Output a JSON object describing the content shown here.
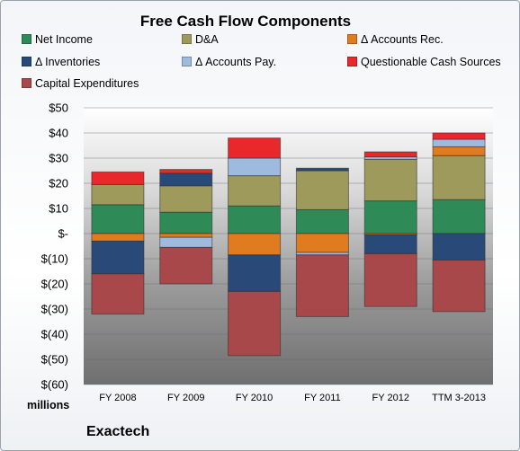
{
  "chart_data": {
    "type": "bar",
    "stacked": true,
    "title": "Free Cash Flow Components",
    "categories": [
      "FY 2008",
      "FY 2009",
      "FY 2010",
      "FY 2011",
      "FY 2012",
      "TTM 3-2013"
    ],
    "ylim": [
      -60,
      50
    ],
    "yticks": [
      50,
      40,
      30,
      20,
      10,
      0,
      -10,
      -20,
      -30,
      -40,
      -50,
      -60
    ],
    "ytick_labels": [
      "$50",
      "$40",
      "$30",
      "$20",
      "$10",
      "$-",
      "$(10)",
      "$(20)",
      "$(30)",
      "$(40)",
      "$(50)",
      "$(60)"
    ],
    "grid": true,
    "legend_position": "top",
    "series": [
      {
        "name": "Net Income",
        "color": "#2e8b57",
        "values": [
          11.5,
          8.5,
          11,
          9.5,
          13,
          13.5
        ]
      },
      {
        "name": "D&A",
        "color": "#9e9a5c",
        "values": [
          8,
          10.5,
          12,
          15.5,
          16.5,
          17.5
        ]
      },
      {
        "name": "Δ Accounts Rec.",
        "color": "#e07b1f",
        "values": [
          -3,
          -1.5,
          -8.5,
          -7.5,
          -0.5,
          3.5
        ]
      },
      {
        "name": "Δ Inventories",
        "color": "#294a78",
        "values": [
          -13,
          5,
          -14.5,
          1,
          -7.5,
          -10.5
        ]
      },
      {
        "name": "Δ Accounts Pay.",
        "color": "#9fbadf",
        "values": [
          0,
          -4,
          7,
          -1,
          1,
          3
        ]
      },
      {
        "name": "Questionable Cash Sources",
        "color": "#e8282a",
        "values": [
          5,
          1.5,
          8,
          0,
          2,
          2.5
        ]
      },
      {
        "name": "Capital Expenditures",
        "color": "#a8484a",
        "values": [
          -16,
          -14.5,
          -25.5,
          -24.5,
          -21,
          -20.5
        ]
      }
    ]
  },
  "units_label": "millions",
  "company": "Exactech"
}
